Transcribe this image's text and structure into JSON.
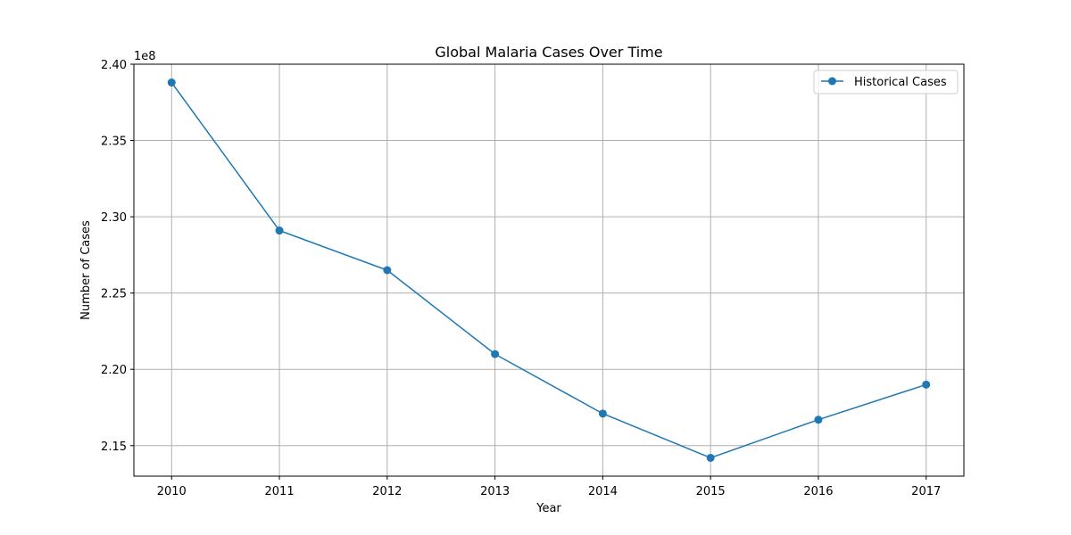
{
  "chart_data": {
    "type": "line",
    "title": "Global Malaria Cases Over Time",
    "xlabel": "Year",
    "ylabel": "Number of Cases",
    "y_offset_label": "1e8",
    "x": [
      2010,
      2011,
      2012,
      2013,
      2014,
      2015,
      2016,
      2017
    ],
    "x_tick_labels": [
      "2010",
      "2011",
      "2012",
      "2013",
      "2014",
      "2015",
      "2016",
      "2017"
    ],
    "xlim": [
      2009.65,
      2017.35
    ],
    "ylim": [
      213000000,
      240000000
    ],
    "y_ticks": [
      215000000,
      220000000,
      225000000,
      230000000,
      235000000,
      240000000
    ],
    "y_tick_labels": [
      "2.15",
      "2.20",
      "2.25",
      "2.30",
      "2.35",
      "2.40"
    ],
    "grid": true,
    "legend_position": "top-right",
    "series": [
      {
        "name": "Historical Cases",
        "color": "#1f77b4",
        "marker": "circle",
        "values": [
          238800000,
          229100000,
          226500000,
          221000000,
          217100000,
          214200000,
          216700000,
          219000000
        ]
      }
    ]
  }
}
